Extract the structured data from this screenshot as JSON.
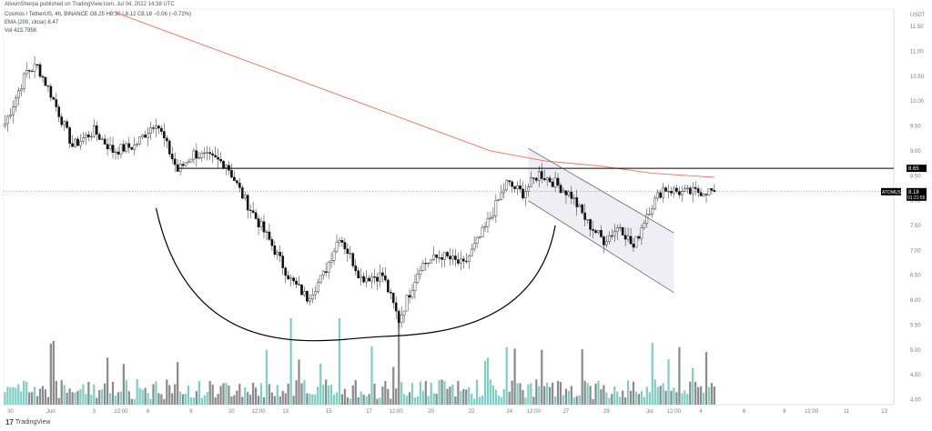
{
  "header": {
    "publisher_line": "AlluvinSherpa published on TradingView.com, Jul 04, 2022 14:38 UTC",
    "symbol_line": "Cosmos / TetherUS, 4h, BINANCE  O8.25  H8.30  L8.12  C8.18  −0.06 (−0.72%)",
    "ema_line": "EMA (200, close)  8.47",
    "vol_line": "Vol  423.795K"
  },
  "branding": {
    "mark": "17",
    "name": "TradingView"
  },
  "colors": {
    "up": "#555555",
    "down": "#111111",
    "vol_up": "#7fcfc5",
    "vol_down": "#8c8c8c",
    "ema": "#e9735a",
    "line": "#000000",
    "channel_fill": "#eeeef4",
    "tag_bg": "#000000"
  },
  "chart_data": {
    "type": "candlestick",
    "title": "",
    "currency_label": "USDT",
    "y_ticks": [
      "11.50",
      "11.00",
      "10.50",
      "10.00",
      "9.50",
      "9.00",
      "8.50",
      "8.00",
      "7.50",
      "7.00",
      "6.50",
      "6.00",
      "5.50",
      "5.00",
      "4.50",
      "4.00"
    ],
    "ylim": [
      3.9,
      11.85
    ],
    "x_ticks": [
      {
        "label": "30",
        "bar": 2
      },
      {
        "label": "Jun",
        "bar": 17
      },
      {
        "label": "3",
        "bar": 33
      },
      {
        "label": "12:00",
        "bar": 43
      },
      {
        "label": "6",
        "bar": 53
      },
      {
        "label": "8",
        "bar": 69
      },
      {
        "label": "10",
        "bar": 84
      },
      {
        "label": "12:00",
        "bar": 94
      },
      {
        "label": "13",
        "bar": 104
      },
      {
        "label": "15",
        "bar": 120
      },
      {
        "label": "17",
        "bar": 135
      },
      {
        "label": "12:00",
        "bar": 145
      },
      {
        "label": "20",
        "bar": 158
      },
      {
        "label": "22",
        "bar": 173
      },
      {
        "label": "24",
        "bar": 187
      },
      {
        "label": "12:00",
        "bar": 196
      },
      {
        "label": "27",
        "bar": 208
      },
      {
        "label": "29",
        "bar": 223
      },
      {
        "label": "Jul",
        "bar": 239
      },
      {
        "label": "12:00",
        "bar": 248
      },
      {
        "label": "4",
        "bar": 258
      },
      {
        "label": "6",
        "bar": 274
      },
      {
        "label": "8",
        "bar": 289
      },
      {
        "label": "12:00",
        "bar": 299
      },
      {
        "label": "11",
        "bar": 312
      },
      {
        "label": "13",
        "bar": 326
      }
    ],
    "bar_count_visible": 330,
    "key_points": [
      {
        "bar": 0,
        "close": 9.55
      },
      {
        "bar": 8,
        "close": 10.6
      },
      {
        "bar": 12,
        "close": 10.7
      },
      {
        "bar": 17,
        "close": 10.15
      },
      {
        "bar": 25,
        "close": 9.1
      },
      {
        "bar": 33,
        "close": 9.4
      },
      {
        "bar": 40,
        "close": 9.0
      },
      {
        "bar": 48,
        "close": 9.1
      },
      {
        "bar": 56,
        "close": 9.6
      },
      {
        "bar": 64,
        "close": 8.6
      },
      {
        "bar": 70,
        "close": 8.95
      },
      {
        "bar": 82,
        "close": 8.75
      },
      {
        "bar": 88,
        "close": 8.1
      },
      {
        "bar": 98,
        "close": 7.2
      },
      {
        "bar": 106,
        "close": 6.4
      },
      {
        "bar": 112,
        "close": 6.05
      },
      {
        "bar": 118,
        "close": 6.5
      },
      {
        "bar": 124,
        "close": 7.3
      },
      {
        "bar": 132,
        "close": 6.45
      },
      {
        "bar": 140,
        "close": 6.5
      },
      {
        "bar": 146,
        "close": 5.6
      },
      {
        "bar": 154,
        "close": 6.7
      },
      {
        "bar": 162,
        "close": 6.9
      },
      {
        "bar": 170,
        "close": 6.7
      },
      {
        "bar": 178,
        "close": 7.45
      },
      {
        "bar": 186,
        "close": 8.35
      },
      {
        "bar": 192,
        "close": 8.15
      },
      {
        "bar": 198,
        "close": 8.55
      },
      {
        "bar": 204,
        "close": 8.35
      },
      {
        "bar": 210,
        "close": 8.1
      },
      {
        "bar": 216,
        "close": 7.55
      },
      {
        "bar": 222,
        "close": 7.2
      },
      {
        "bar": 228,
        "close": 7.5
      },
      {
        "bar": 233,
        "close": 7.05
      },
      {
        "bar": 238,
        "close": 7.75
      },
      {
        "bar": 244,
        "close": 8.25
      },
      {
        "bar": 252,
        "close": 8.15
      },
      {
        "bar": 260,
        "close": 8.2
      },
      {
        "bar": 263,
        "close": 8.18
      }
    ],
    "ema200": [
      {
        "bar": 40,
        "value": 11.8
      },
      {
        "bar": 70,
        "value": 11.2
      },
      {
        "bar": 100,
        "value": 10.6
      },
      {
        "bar": 130,
        "value": 10.0
      },
      {
        "bar": 160,
        "value": 9.4
      },
      {
        "bar": 180,
        "value": 9.0
      },
      {
        "bar": 200,
        "value": 8.8
      },
      {
        "bar": 220,
        "value": 8.7
      },
      {
        "bar": 240,
        "value": 8.55
      },
      {
        "bar": 263,
        "value": 8.47
      }
    ],
    "resistance_level": {
      "value": 8.65,
      "label": "8.65",
      "from_bar": 64,
      "to_bar": 330
    },
    "current_price": {
      "value": 8.18,
      "label": "8.18",
      "symbol_tag": "ATOMUSDT",
      "countdown": "01:21:55"
    },
    "channel": {
      "upper": [
        {
          "bar": 194,
          "value": 9.05
        },
        {
          "bar": 248,
          "value": 7.35
        }
      ],
      "lower": [
        {
          "bar": 194,
          "value": 8.0
        },
        {
          "bar": 248,
          "value": 6.15
        }
      ]
    },
    "cup_arc": {
      "start_bar": 56,
      "start_value": 7.85,
      "bottom_bar": 140,
      "bottom_value": 5.27,
      "end_bar": 204,
      "end_value": 7.5
    },
    "volume": {
      "max_label": "volume scale shared",
      "base_value": 3.95
    }
  }
}
